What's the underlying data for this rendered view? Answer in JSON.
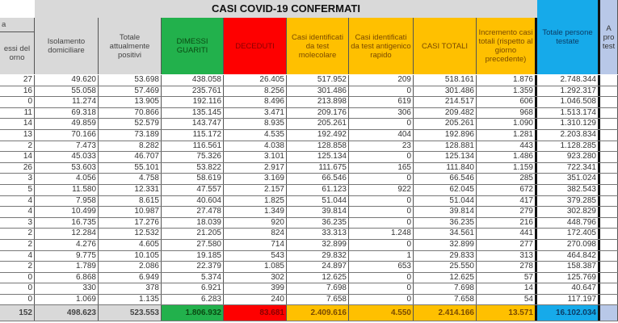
{
  "title": "CASI COVID-19 CONFERMATI",
  "headers": [
    {
      "top": "a",
      "label": "essi del\norno"
    },
    {
      "label": "Isolamento domiciliare"
    },
    {
      "label": "Totale attualmente positivi"
    },
    {
      "label": "DIMESSI GUARITI"
    },
    {
      "label": "DECEDUTI"
    },
    {
      "label": "Casi identificati da test molecolare"
    },
    {
      "label": "Casi identificati da test antigenico rapido"
    },
    {
      "label": "CASI TOTALI"
    },
    {
      "label": "Incremento casi totali (rispetto al giorno precedente)"
    },
    {
      "label": "Totale persone testate"
    },
    {
      "label": "A\npro\ntest"
    }
  ],
  "rows": [
    [
      "27",
      "49.620",
      "53.698",
      "438.058",
      "26.405",
      "517.952",
      "209",
      "518.161",
      "1.876",
      "2.748.344",
      ""
    ],
    [
      "16",
      "55.058",
      "57.469",
      "235.761",
      "8.256",
      "301.486",
      "0",
      "301.486",
      "1.359",
      "1.292.317",
      ""
    ],
    [
      "0",
      "11.274",
      "13.905",
      "192.116",
      "8.496",
      "213.898",
      "619",
      "214.517",
      "606",
      "1.046.508",
      ""
    ],
    [
      "11",
      "69.318",
      "70.866",
      "135.145",
      "3.471",
      "209.176",
      "306",
      "209.482",
      "968",
      "1.513.174",
      ""
    ],
    [
      "14",
      "49.859",
      "52.579",
      "143.747",
      "8.935",
      "205.261",
      "0",
      "205.261",
      "1.090",
      "1.310.129",
      ""
    ],
    [
      "13",
      "70.166",
      "73.189",
      "115.172",
      "4.535",
      "192.492",
      "404",
      "192.896",
      "1.281",
      "2.203.834",
      ""
    ],
    [
      "2",
      "7.473",
      "8.282",
      "116.561",
      "4.038",
      "128.858",
      "23",
      "128.881",
      "443",
      "1.128.285",
      ""
    ],
    [
      "14",
      "45.033",
      "46.707",
      "75.326",
      "3.101",
      "125.134",
      "0",
      "125.134",
      "1.486",
      "923.280",
      ""
    ],
    [
      "26",
      "53.603",
      "55.101",
      "53.822",
      "2.917",
      "111.675",
      "165",
      "111.840",
      "1.159",
      "722.341",
      ""
    ],
    [
      "3",
      "4.056",
      "4.758",
      "58.619",
      "3.169",
      "66.546",
      "0",
      "66.546",
      "285",
      "351.024",
      ""
    ],
    [
      "5",
      "11.580",
      "12.331",
      "47.557",
      "2.157",
      "61.123",
      "922",
      "62.045",
      "672",
      "382.543",
      ""
    ],
    [
      "4",
      "7.958",
      "8.615",
      "40.604",
      "1.825",
      "51.044",
      "0",
      "51.044",
      "417",
      "379.285",
      ""
    ],
    [
      "4",
      "10.499",
      "10.987",
      "27.478",
      "1.349",
      "39.814",
      "0",
      "39.814",
      "279",
      "302.829",
      ""
    ],
    [
      "3",
      "16.735",
      "17.276",
      "18.039",
      "920",
      "36.235",
      "0",
      "36.235",
      "216",
      "448.796",
      ""
    ],
    [
      "2",
      "12.284",
      "12.532",
      "21.205",
      "824",
      "33.313",
      "1.248",
      "34.561",
      "441",
      "172.405",
      ""
    ],
    [
      "2",
      "4.276",
      "4.605",
      "27.580",
      "714",
      "32.899",
      "0",
      "32.899",
      "277",
      "270.098",
      ""
    ],
    [
      "4",
      "9.775",
      "10.105",
      "19.185",
      "543",
      "29.832",
      "1",
      "29.833",
      "313",
      "464.842",
      ""
    ],
    [
      "2",
      "1.789",
      "2.086",
      "22.379",
      "1.085",
      "24.897",
      "653",
      "25.550",
      "278",
      "158.387",
      ""
    ],
    [
      "0",
      "6.868",
      "6.949",
      "5.374",
      "302",
      "12.625",
      "0",
      "12.625",
      "57",
      "125.769",
      ""
    ],
    [
      "0",
      "330",
      "378",
      "6.921",
      "399",
      "7.698",
      "0",
      "7.698",
      "14",
      "40.647",
      ""
    ],
    [
      "0",
      "1.069",
      "1.135",
      "6.283",
      "240",
      "7.658",
      "0",
      "7.658",
      "54",
      "117.197",
      ""
    ]
  ],
  "totals": [
    "152",
    "498.623",
    "523.553",
    "1.806.932",
    "83.681",
    "2.409.616",
    "4.550",
    "2.414.166",
    "13.571",
    "16.102.034",
    ""
  ],
  "colors": {
    "gray": "#d9d9d9",
    "green": "#22b14c",
    "red": "#fe0000",
    "orange": "#ffc000",
    "blue": "#16aaea",
    "light_blue": "#b8c8e8"
  }
}
